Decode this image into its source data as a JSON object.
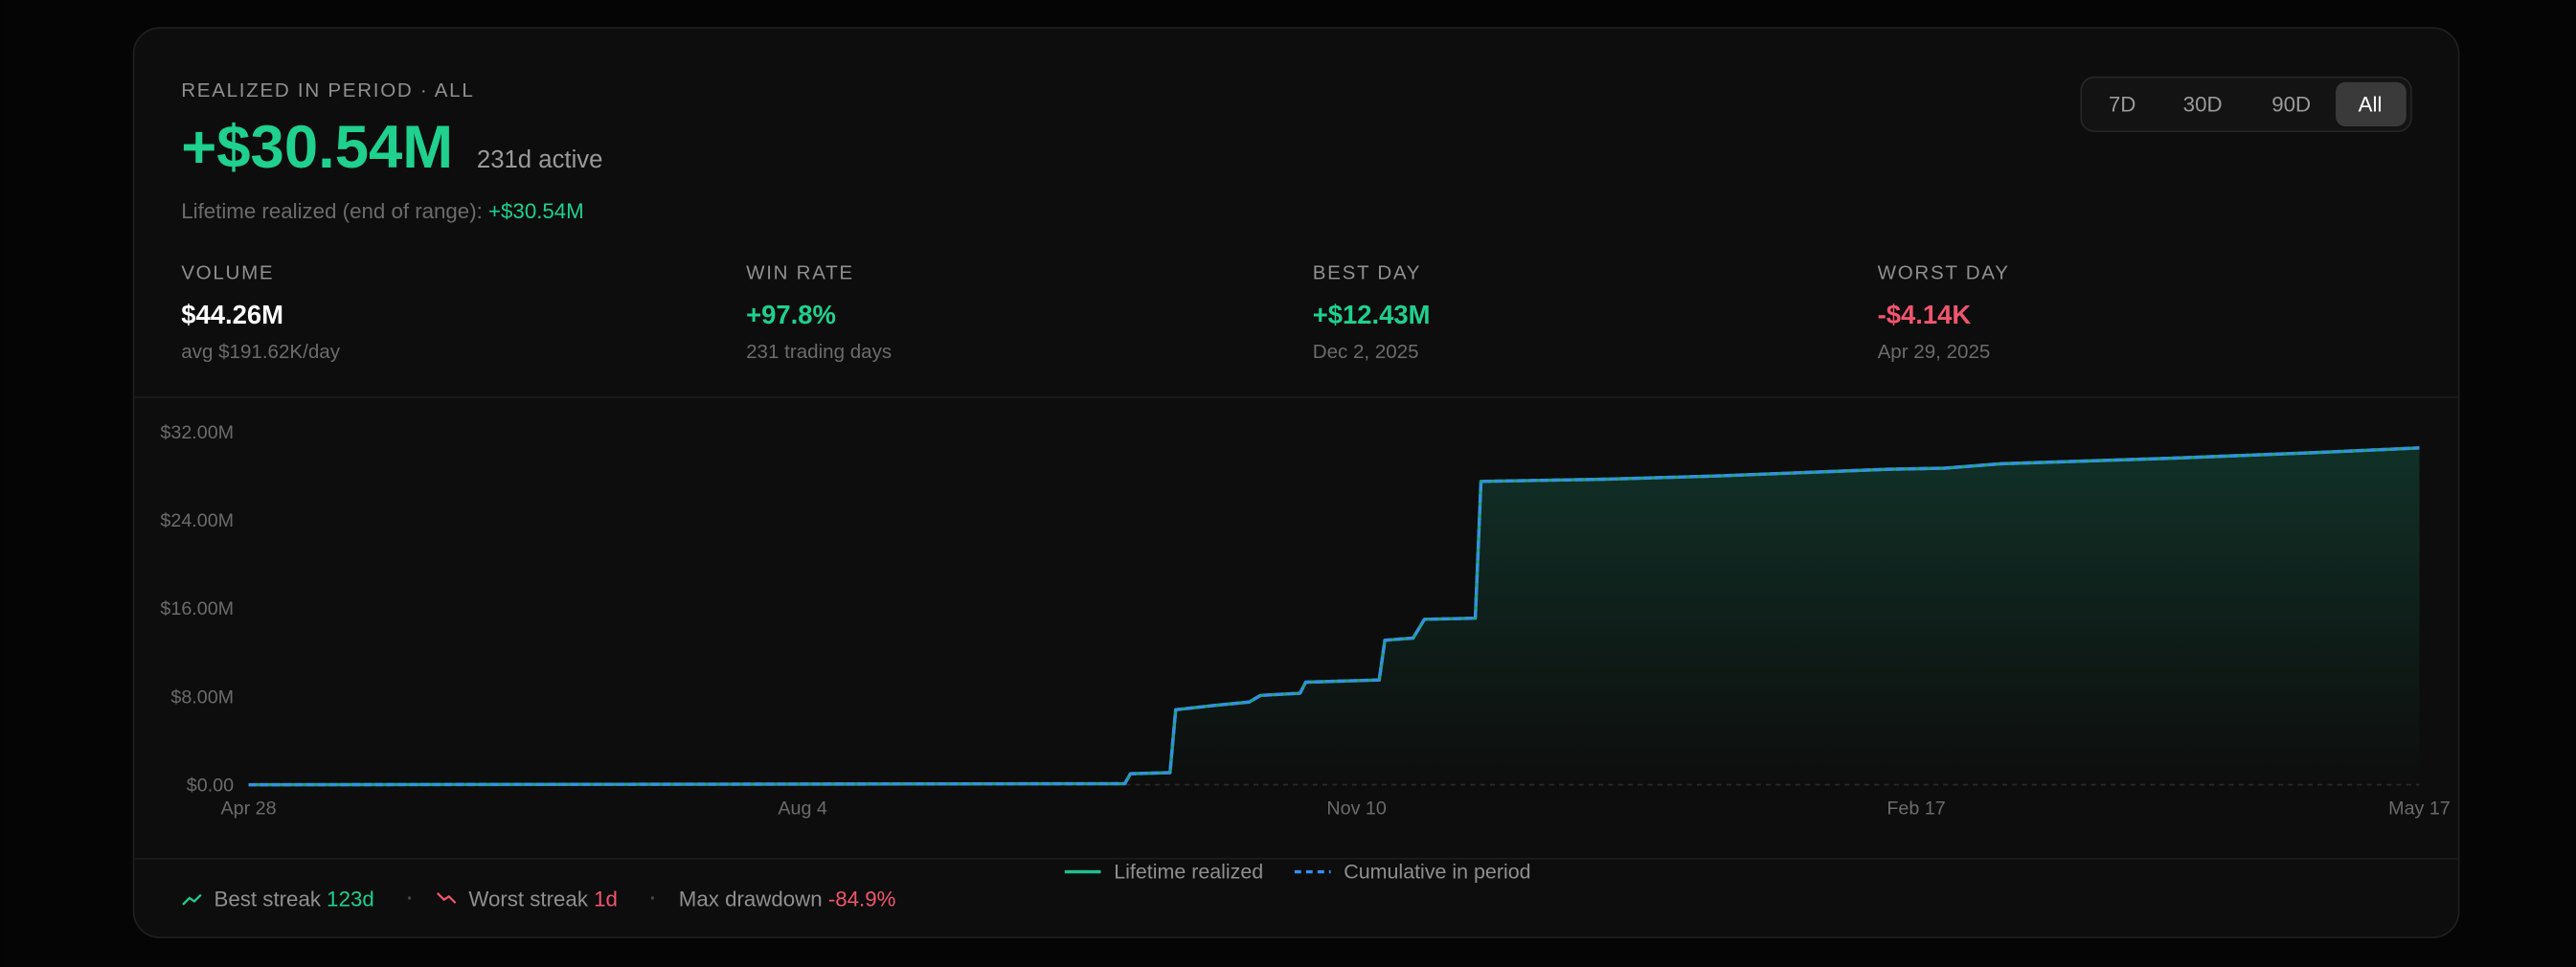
{
  "header": {
    "label": "REALIZED IN PERIOD · ALL",
    "value": "+$30.54M",
    "active": "231d active",
    "lifetime_label": "Lifetime realized (end of range):",
    "lifetime_value": "+$30.54M"
  },
  "range_buttons": [
    "7D",
    "30D",
    "90D",
    "All"
  ],
  "stats": [
    {
      "label": "VOLUME",
      "value": "$44.26M",
      "sub": "avg $191.62K/day"
    },
    {
      "label": "WIN RATE",
      "value": "+97.8%",
      "sub": "231 trading days"
    },
    {
      "label": "BEST DAY",
      "value": "+$12.43M",
      "sub": "Dec 2, 2025"
    },
    {
      "label": "WORST DAY",
      "value": "-$4.14K",
      "sub": "Apr 29, 2025"
    }
  ],
  "chart_data": {
    "type": "line",
    "x": [
      0,
      155,
      156,
      163,
      164,
      171,
      177,
      179,
      186,
      187,
      200,
      201,
      206,
      208,
      217,
      218,
      240,
      260,
      290,
      300,
      310,
      340,
      365,
      384
    ],
    "xlim": [
      0,
      384
    ],
    "xticks": [
      {
        "value": 0,
        "label": "Apr 28"
      },
      {
        "value": 98,
        "label": "Aug 4"
      },
      {
        "value": 196,
        "label": "Nov 10"
      },
      {
        "value": 295,
        "label": "Feb 17"
      },
      {
        "value": 384,
        "label": "May 17"
      }
    ],
    "ylim": [
      0,
      32
    ],
    "yticks": [
      {
        "value": 0,
        "label": "$0.00"
      },
      {
        "value": 8,
        "label": "$8.00M"
      },
      {
        "value": 16,
        "label": "$16.00M"
      },
      {
        "value": 24,
        "label": "$24.00M"
      },
      {
        "value": 32,
        "label": "$32.00M"
      }
    ],
    "grid": false,
    "series": [
      {
        "name": "Lifetime realized",
        "color": "#1fbf8f",
        "values": [
          0,
          0.1,
          1.0,
          1.1,
          6.8,
          7.2,
          7.5,
          8.1,
          8.3,
          9.3,
          9.5,
          13.1,
          13.3,
          15.0,
          15.1,
          27.5,
          27.7,
          28.0,
          28.6,
          28.7,
          29.1,
          29.6,
          30.1,
          30.54
        ]
      },
      {
        "name": "Cumulative in period",
        "color": "#3b8cf0",
        "dashed": true,
        "values": [
          0,
          0.1,
          1.0,
          1.1,
          6.8,
          7.2,
          7.5,
          8.1,
          8.3,
          9.3,
          9.5,
          13.1,
          13.3,
          15.0,
          15.1,
          27.5,
          27.7,
          28.0,
          28.6,
          28.7,
          29.1,
          29.6,
          30.1,
          30.54
        ]
      }
    ]
  },
  "footer": [
    {
      "label": "Best streak",
      "value": "123d"
    },
    {
      "label": "Worst streak",
      "value": "1d"
    },
    {
      "label": "Max drawdown",
      "value": "-84.9%"
    }
  ]
}
